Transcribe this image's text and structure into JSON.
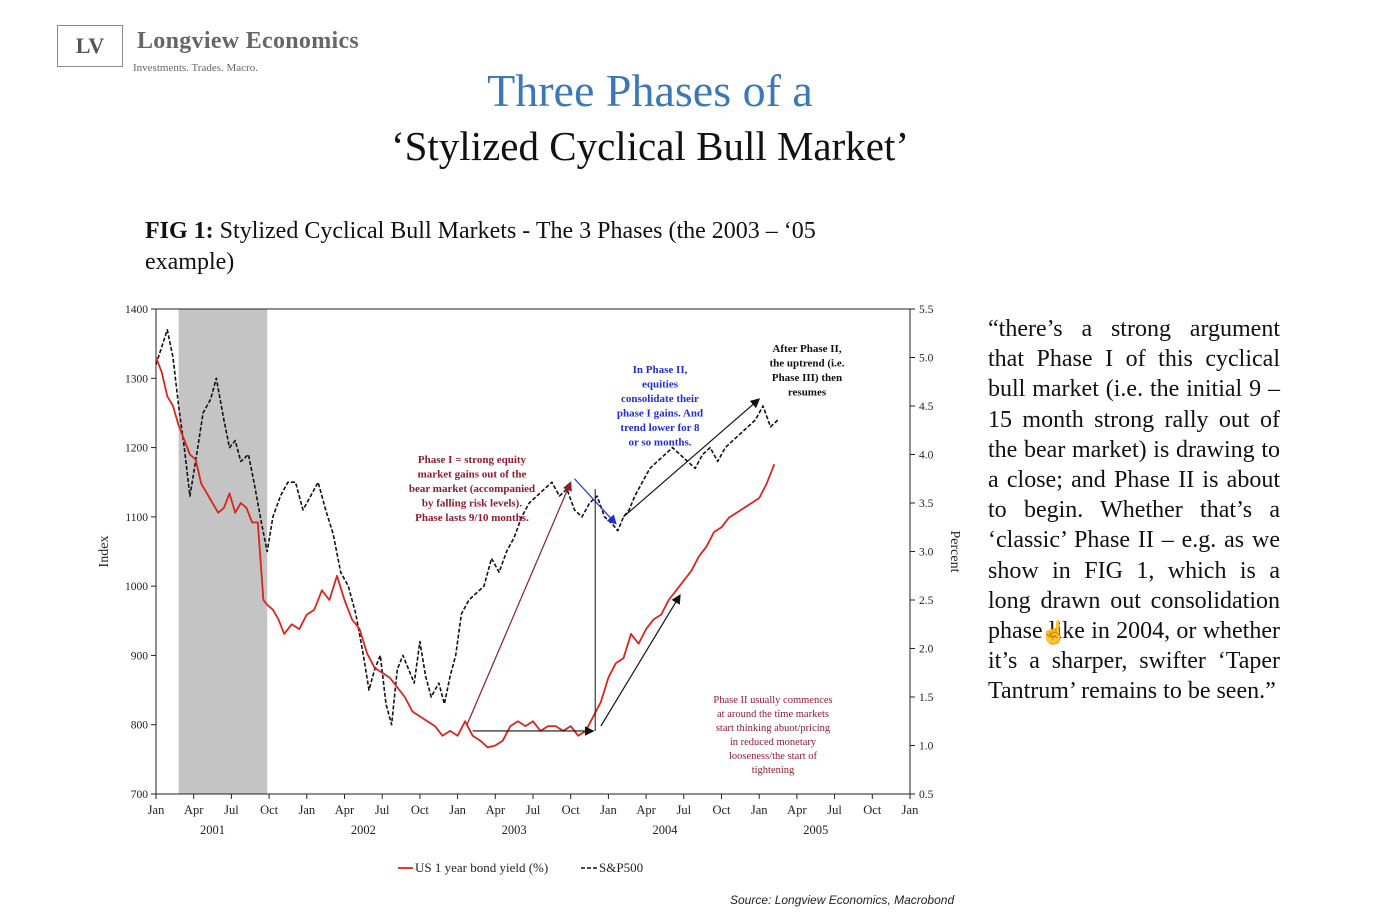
{
  "header": {
    "logo_mark": "LV",
    "logo_name": "Longview Economics",
    "logo_tagline": "Investments. Trades. Macro.",
    "title_line1": "Three Phases of a",
    "title_line2": "‘Stylized Cyclical Bull Market’"
  },
  "figure": {
    "caption_bold": "FIG 1:",
    "caption_text": " Stylized Cyclical Bull Markets - The 3 Phases (the 2003 – ‘05 example)",
    "source": "Source: Longview Economics, Macrobond"
  },
  "quote": "“there’s a strong argument that Phase I of this cyclical bull market (i.e. the initial 9 – 15 month strong rally out of the bear market) is drawing to a close; and Phase II is about to begin. Whether that’s a ‘classic’ Phase II – e.g. as we show in FIG 1, which is a long drawn out consolidation phase like in 2004, or whether it’s a sharper, swifter ‘Taper Tantrum’ remains to be seen.”",
  "chart_data": {
    "type": "line",
    "ylabel_left": "Index",
    "ylabel_right": "Percent",
    "y_left_ticks": [
      700,
      800,
      900,
      1000,
      1100,
      1200,
      1300,
      1400
    ],
    "y_left_range": [
      700,
      1400
    ],
    "y_right_ticks": [
      "0.5",
      "1.0",
      "1.5",
      "2.0",
      "2.5",
      "3.0",
      "3.5",
      "4.0",
      "4.5",
      "5.0",
      "5.5"
    ],
    "y_right_range": [
      0.5,
      5.5
    ],
    "x_ticks": [
      "Jan",
      "Apr",
      "Jul",
      "Oct",
      "Jan",
      "Apr",
      "Jul",
      "Oct",
      "Jan",
      "Apr",
      "Jul",
      "Oct",
      "Jan",
      "Apr",
      "Jul",
      "Oct",
      "Jan",
      "Apr",
      "Jul",
      "Oct",
      "Jan"
    ],
    "x_years": [
      {
        "label": "2001",
        "pos": 1.5
      },
      {
        "label": "2002",
        "pos": 5.5
      },
      {
        "label": "2003",
        "pos": 9.5
      },
      {
        "label": "2004",
        "pos": 13.5
      },
      {
        "label": "2005",
        "pos": 17.5
      }
    ],
    "shaded_region_quarters": [
      0.6,
      2.95
    ],
    "legend": [
      {
        "label": "US 1 year bond yield (%)",
        "color": "#d9261c",
        "style": "solid"
      },
      {
        "label": "S&P500",
        "color": "#111111",
        "style": "dashed"
      }
    ],
    "series": [
      {
        "name": "S&P500",
        "axis": "left",
        "points": [
          [
            0,
            1320
          ],
          [
            0.15,
            1345
          ],
          [
            0.3,
            1370
          ],
          [
            0.45,
            1330
          ],
          [
            0.6,
            1260
          ],
          [
            0.75,
            1200
          ],
          [
            0.9,
            1130
          ],
          [
            1.05,
            1180
          ],
          [
            1.25,
            1250
          ],
          [
            1.45,
            1270
          ],
          [
            1.6,
            1300
          ],
          [
            1.8,
            1240
          ],
          [
            1.95,
            1200
          ],
          [
            2.1,
            1210
          ],
          [
            2.25,
            1180
          ],
          [
            2.45,
            1190
          ],
          [
            2.6,
            1150
          ],
          [
            2.8,
            1090
          ],
          [
            2.95,
            1050
          ],
          [
            3.1,
            1100
          ],
          [
            3.3,
            1130
          ],
          [
            3.5,
            1150
          ],
          [
            3.7,
            1150
          ],
          [
            3.9,
            1110
          ],
          [
            4.1,
            1130
          ],
          [
            4.3,
            1150
          ],
          [
            4.5,
            1110
          ],
          [
            4.7,
            1075
          ],
          [
            4.9,
            1020
          ],
          [
            5.1,
            1000
          ],
          [
            5.3,
            960
          ],
          [
            5.5,
            900
          ],
          [
            5.65,
            850
          ],
          [
            5.8,
            880
          ],
          [
            5.95,
            900
          ],
          [
            6.1,
            830
          ],
          [
            6.25,
            800
          ],
          [
            6.4,
            880
          ],
          [
            6.55,
            900
          ],
          [
            6.7,
            880
          ],
          [
            6.85,
            860
          ],
          [
            7.0,
            920
          ],
          [
            7.15,
            870
          ],
          [
            7.3,
            840
          ],
          [
            7.5,
            860
          ],
          [
            7.65,
            830
          ],
          [
            7.8,
            870
          ],
          [
            7.95,
            900
          ],
          [
            8.1,
            960
          ],
          [
            8.3,
            980
          ],
          [
            8.5,
            990
          ],
          [
            8.7,
            1000
          ],
          [
            8.9,
            1040
          ],
          [
            9.1,
            1020
          ],
          [
            9.3,
            1050
          ],
          [
            9.5,
            1070
          ],
          [
            9.7,
            1100
          ],
          [
            9.9,
            1120
          ],
          [
            10.1,
            1130
          ],
          [
            10.3,
            1140
          ],
          [
            10.5,
            1150
          ],
          [
            10.7,
            1130
          ],
          [
            10.9,
            1140
          ],
          [
            11.1,
            1110
          ],
          [
            11.3,
            1100
          ],
          [
            11.5,
            1120
          ],
          [
            11.7,
            1130
          ],
          [
            11.9,
            1100
          ],
          [
            12.1,
            1090
          ],
          [
            12.25,
            1080
          ],
          [
            12.4,
            1100
          ],
          [
            12.55,
            1110
          ],
          [
            12.7,
            1130
          ],
          [
            12.9,
            1150
          ],
          [
            13.1,
            1170
          ],
          [
            13.3,
            1180
          ],
          [
            13.5,
            1190
          ],
          [
            13.7,
            1200
          ],
          [
            13.9,
            1190
          ],
          [
            14.1,
            1180
          ],
          [
            14.3,
            1170
          ],
          [
            14.5,
            1190
          ],
          [
            14.7,
            1200
          ],
          [
            14.9,
            1180
          ],
          [
            15.1,
            1200
          ],
          [
            15.3,
            1210
          ],
          [
            15.5,
            1220
          ],
          [
            15.7,
            1230
          ],
          [
            15.9,
            1240
          ],
          [
            16.1,
            1260
          ],
          [
            16.3,
            1230
          ],
          [
            16.5,
            1240
          ]
        ]
      },
      {
        "name": "US 1 year bond yield (%)",
        "axis": "right",
        "points": [
          [
            0,
            5.0
          ],
          [
            0.15,
            4.85
          ],
          [
            0.3,
            4.6
          ],
          [
            0.45,
            4.5
          ],
          [
            0.6,
            4.3
          ],
          [
            0.75,
            4.15
          ],
          [
            0.9,
            4.0
          ],
          [
            1.05,
            3.95
          ],
          [
            1.2,
            3.7
          ],
          [
            1.35,
            3.6
          ],
          [
            1.5,
            3.5
          ],
          [
            1.65,
            3.4
          ],
          [
            1.8,
            3.45
          ],
          [
            1.95,
            3.6
          ],
          [
            2.1,
            3.4
          ],
          [
            2.25,
            3.5
          ],
          [
            2.4,
            3.45
          ],
          [
            2.55,
            3.3
          ],
          [
            2.7,
            3.3
          ],
          [
            2.85,
            2.5
          ],
          [
            2.95,
            2.45
          ],
          [
            3.1,
            2.4
          ],
          [
            3.25,
            2.3
          ],
          [
            3.4,
            2.15
          ],
          [
            3.6,
            2.25
          ],
          [
            3.8,
            2.2
          ],
          [
            4.0,
            2.35
          ],
          [
            4.2,
            2.4
          ],
          [
            4.4,
            2.6
          ],
          [
            4.6,
            2.5
          ],
          [
            4.8,
            2.75
          ],
          [
            5.0,
            2.5
          ],
          [
            5.2,
            2.3
          ],
          [
            5.4,
            2.2
          ],
          [
            5.6,
            1.95
          ],
          [
            5.8,
            1.8
          ],
          [
            6.0,
            1.75
          ],
          [
            6.2,
            1.7
          ],
          [
            6.4,
            1.6
          ],
          [
            6.6,
            1.5
          ],
          [
            6.8,
            1.35
          ],
          [
            7.0,
            1.3
          ],
          [
            7.2,
            1.25
          ],
          [
            7.4,
            1.2
          ],
          [
            7.6,
            1.1
          ],
          [
            7.8,
            1.15
          ],
          [
            8.0,
            1.1
          ],
          [
            8.2,
            1.25
          ],
          [
            8.4,
            1.1
          ],
          [
            8.6,
            1.05
          ],
          [
            8.8,
            0.98
          ],
          [
            9.0,
            1.0
          ],
          [
            9.2,
            1.05
          ],
          [
            9.4,
            1.2
          ],
          [
            9.6,
            1.25
          ],
          [
            9.8,
            1.2
          ],
          [
            10.0,
            1.25
          ],
          [
            10.2,
            1.15
          ],
          [
            10.4,
            1.2
          ],
          [
            10.6,
            1.2
          ],
          [
            10.8,
            1.15
          ],
          [
            11.0,
            1.2
          ],
          [
            11.2,
            1.1
          ],
          [
            11.4,
            1.15
          ],
          [
            11.6,
            1.3
          ],
          [
            11.8,
            1.45
          ],
          [
            12.0,
            1.7
          ],
          [
            12.2,
            1.85
          ],
          [
            12.4,
            1.9
          ],
          [
            12.6,
            2.15
          ],
          [
            12.8,
            2.05
          ],
          [
            13.0,
            2.2
          ],
          [
            13.2,
            2.3
          ],
          [
            13.4,
            2.35
          ],
          [
            13.6,
            2.5
          ],
          [
            13.8,
            2.6
          ],
          [
            14.0,
            2.7
          ],
          [
            14.2,
            2.8
          ],
          [
            14.4,
            2.95
          ],
          [
            14.6,
            3.05
          ],
          [
            14.8,
            3.2
          ],
          [
            15.0,
            3.25
          ],
          [
            15.2,
            3.35
          ],
          [
            15.4,
            3.4
          ],
          [
            15.6,
            3.45
          ],
          [
            15.8,
            3.5
          ],
          [
            16.0,
            3.55
          ],
          [
            16.2,
            3.7
          ],
          [
            16.4,
            3.9
          ]
        ]
      }
    ],
    "annotations": [
      {
        "id": "phase1",
        "color": "#8b1e2d",
        "lines": [
          "Phase I = strong equity",
          "market gains out of the",
          "bear market (accompanied",
          "by falling risk levels).",
          "Phase lasts 9/10 months."
        ]
      },
      {
        "id": "phase2",
        "color": "#1f2fd1",
        "lines": [
          "In Phase II,",
          "equities",
          "consolidate their",
          "phase I gains. And",
          "trend lower for 8",
          "or so months."
        ]
      },
      {
        "id": "phase3",
        "color": "#111111",
        "lines": [
          "After Phase II,",
          "the uptrend (i.e.",
          "Phase III) then",
          "resumes"
        ]
      },
      {
        "id": "phase2b",
        "color": "#8b1e2d",
        "lines": [
          "Phase II usually commences",
          "at around the time markets",
          "start thinking abuot/pricing",
          "in reduced monetary",
          "looseness/the start of",
          "tightening"
        ]
      }
    ]
  }
}
